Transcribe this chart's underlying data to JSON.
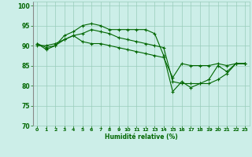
{
  "title": "",
  "xlabel": "Humidité relative (%)",
  "ylabel": "",
  "background_color": "#cceee8",
  "grid_color": "#99ccbb",
  "line_color": "#006600",
  "xlim": [
    -0.5,
    23.5
  ],
  "ylim": [
    70,
    101
  ],
  "yticks": [
    70,
    75,
    80,
    85,
    90,
    95,
    100
  ],
  "xticks": [
    0,
    1,
    2,
    3,
    4,
    5,
    6,
    7,
    8,
    9,
    10,
    11,
    12,
    13,
    14,
    15,
    16,
    17,
    18,
    19,
    20,
    21,
    22,
    23
  ],
  "series": [
    [
      90.5,
      89.0,
      90.0,
      92.5,
      93.5,
      95.0,
      95.5,
      95.0,
      94.0,
      94.0,
      94.0,
      94.0,
      94.0,
      93.0,
      87.5,
      78.5,
      81.0,
      79.5,
      80.5,
      81.5,
      85.0,
      83.5,
      85.5,
      85.5
    ],
    [
      90.0,
      90.0,
      90.5,
      91.5,
      92.5,
      91.0,
      90.5,
      90.5,
      90.0,
      89.5,
      89.0,
      88.5,
      88.0,
      87.5,
      87.0,
      82.0,
      85.5,
      85.0,
      85.0,
      85.0,
      85.5,
      85.0,
      85.5,
      85.5
    ],
    [
      90.5,
      89.5,
      90.0,
      91.5,
      92.5,
      93.0,
      94.0,
      93.5,
      93.0,
      92.0,
      91.5,
      91.0,
      90.5,
      90.0,
      89.5,
      81.0,
      80.5,
      80.5,
      80.5,
      80.5,
      81.5,
      83.0,
      85.5,
      85.5
    ]
  ]
}
